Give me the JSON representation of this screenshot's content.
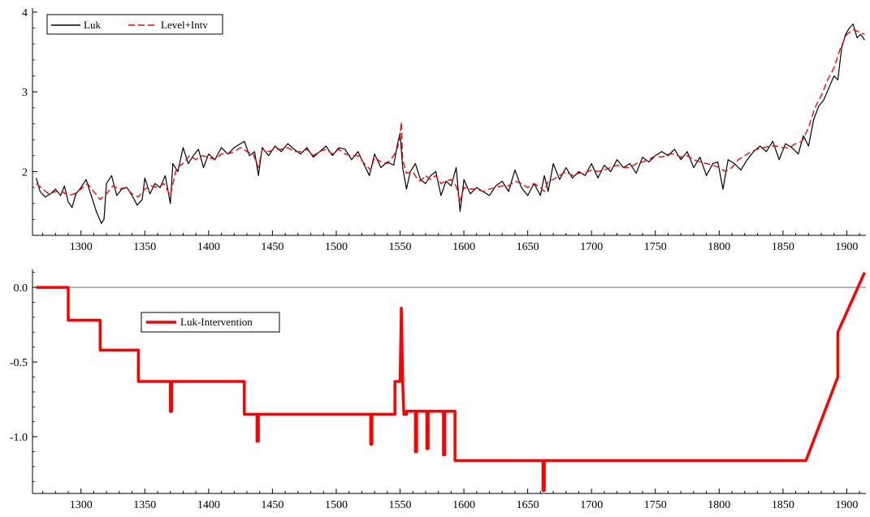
{
  "chart_data": [
    {
      "type": "line",
      "title": "",
      "xlabel": "",
      "ylabel": "",
      "xlim": [
        1262,
        1915
      ],
      "ylim": [
        1.2,
        4.05
      ],
      "xticks": [
        1300,
        1350,
        1400,
        1450,
        1500,
        1550,
        1600,
        1650,
        1700,
        1750,
        1800,
        1850,
        1900
      ],
      "yticks": [
        2,
        3,
        4
      ],
      "legend_position": "top-left",
      "grid": false,
      "series": [
        {
          "name": "Luk",
          "style": "solid",
          "color": "#000000",
          "x": [
            1265,
            1268,
            1272,
            1276,
            1280,
            1284,
            1287,
            1290,
            1293,
            1296,
            1300,
            1304,
            1308,
            1312,
            1316,
            1318,
            1320,
            1324,
            1328,
            1332,
            1336,
            1340,
            1344,
            1348,
            1350,
            1354,
            1358,
            1362,
            1366,
            1370,
            1372,
            1376,
            1380,
            1384,
            1388,
            1392,
            1396,
            1400,
            1405,
            1410,
            1415,
            1420,
            1425,
            1428,
            1432,
            1436,
            1439,
            1442,
            1447,
            1452,
            1457,
            1462,
            1467,
            1472,
            1477,
            1482,
            1487,
            1492,
            1497,
            1502,
            1507,
            1512,
            1517,
            1522,
            1526,
            1530,
            1535,
            1540,
            1545,
            1548,
            1550,
            1552,
            1555,
            1558,
            1562,
            1566,
            1570,
            1574,
            1578,
            1582,
            1586,
            1590,
            1594,
            1597,
            1600,
            1605,
            1610,
            1615,
            1620,
            1625,
            1630,
            1635,
            1640,
            1645,
            1650,
            1655,
            1660,
            1663,
            1666,
            1670,
            1675,
            1680,
            1685,
            1690,
            1695,
            1700,
            1705,
            1710,
            1715,
            1720,
            1725,
            1730,
            1735,
            1740,
            1745,
            1750,
            1755,
            1760,
            1765,
            1770,
            1775,
            1780,
            1785,
            1790,
            1795,
            1799,
            1803,
            1807,
            1812,
            1817,
            1822,
            1827,
            1832,
            1837,
            1842,
            1847,
            1852,
            1857,
            1862,
            1866,
            1870,
            1874,
            1878,
            1882,
            1886,
            1890,
            1893,
            1896,
            1899,
            1902,
            1905,
            1908,
            1911,
            1914
          ],
          "y": [
            1.92,
            1.75,
            1.68,
            1.72,
            1.78,
            1.7,
            1.82,
            1.62,
            1.55,
            1.72,
            1.8,
            1.9,
            1.7,
            1.5,
            1.35,
            1.4,
            1.85,
            1.95,
            1.7,
            1.78,
            1.8,
            1.7,
            1.58,
            1.65,
            1.92,
            1.72,
            1.85,
            1.8,
            1.95,
            1.6,
            2.1,
            2.0,
            2.3,
            2.1,
            2.2,
            2.28,
            2.05,
            2.22,
            2.15,
            2.3,
            2.22,
            2.3,
            2.35,
            2.38,
            2.2,
            2.25,
            1.95,
            2.3,
            2.2,
            2.32,
            2.25,
            2.35,
            2.28,
            2.22,
            2.3,
            2.18,
            2.25,
            2.32,
            2.2,
            2.3,
            2.28,
            2.15,
            2.25,
            2.08,
            1.95,
            2.22,
            2.05,
            2.12,
            2.08,
            2.35,
            2.48,
            2.05,
            1.78,
            2.0,
            2.1,
            1.9,
            1.85,
            1.95,
            2.0,
            1.7,
            1.88,
            1.82,
            2.05,
            1.5,
            1.9,
            1.72,
            1.8,
            1.75,
            1.7,
            1.82,
            1.88,
            1.75,
            2.02,
            1.8,
            1.7,
            1.85,
            1.7,
            1.95,
            1.75,
            2.1,
            1.9,
            2.05,
            1.92,
            2.0,
            1.95,
            2.1,
            1.92,
            2.08,
            2.0,
            2.15,
            2.05,
            2.1,
            1.98,
            2.18,
            2.12,
            2.2,
            2.25,
            2.2,
            2.28,
            2.15,
            2.25,
            2.05,
            2.18,
            1.95,
            2.1,
            2.12,
            1.78,
            2.15,
            2.1,
            2.02,
            2.15,
            2.25,
            2.32,
            2.25,
            2.38,
            2.15,
            2.35,
            2.3,
            2.22,
            2.45,
            2.32,
            2.65,
            2.82,
            2.9,
            3.05,
            3.2,
            3.15,
            3.55,
            3.72,
            3.8,
            3.85,
            3.68,
            3.72,
            3.65
          ],
          "values_estimated": true
        },
        {
          "name": "Level+Intv",
          "style": "dashed",
          "color": "#ff0000",
          "x": [
            1265,
            1270,
            1275,
            1280,
            1285,
            1290,
            1295,
            1300,
            1305,
            1310,
            1315,
            1320,
            1325,
            1330,
            1335,
            1340,
            1345,
            1350,
            1355,
            1360,
            1365,
            1370,
            1375,
            1380,
            1385,
            1390,
            1395,
            1400,
            1405,
            1410,
            1415,
            1420,
            1425,
            1430,
            1435,
            1439,
            1442,
            1447,
            1452,
            1457,
            1462,
            1467,
            1472,
            1477,
            1482,
            1487,
            1492,
            1497,
            1502,
            1507,
            1512,
            1517,
            1522,
            1527,
            1530,
            1535,
            1540,
            1545,
            1548,
            1550,
            1551,
            1552,
            1555,
            1560,
            1563,
            1566,
            1570,
            1574,
            1578,
            1582,
            1586,
            1590,
            1594,
            1597,
            1600,
            1605,
            1610,
            1615,
            1620,
            1625,
            1630,
            1635,
            1640,
            1645,
            1650,
            1655,
            1660,
            1663,
            1666,
            1670,
            1675,
            1680,
            1685,
            1690,
            1695,
            1700,
            1705,
            1710,
            1715,
            1720,
            1725,
            1730,
            1735,
            1740,
            1745,
            1750,
            1755,
            1760,
            1765,
            1770,
            1775,
            1780,
            1785,
            1790,
            1795,
            1800,
            1805,
            1810,
            1815,
            1820,
            1825,
            1830,
            1835,
            1840,
            1845,
            1850,
            1855,
            1860,
            1865,
            1870,
            1875,
            1880,
            1885,
            1890,
            1895,
            1900,
            1905,
            1910,
            1914
          ],
          "y": [
            1.85,
            1.78,
            1.72,
            1.75,
            1.75,
            1.7,
            1.72,
            1.78,
            1.85,
            1.75,
            1.65,
            1.72,
            1.82,
            1.78,
            1.8,
            1.72,
            1.68,
            1.78,
            1.82,
            1.8,
            1.85,
            1.7,
            2.05,
            2.1,
            2.2,
            2.15,
            2.2,
            2.18,
            2.15,
            2.22,
            2.22,
            2.25,
            2.3,
            2.25,
            2.22,
            2.05,
            2.28,
            2.25,
            2.28,
            2.28,
            2.3,
            2.25,
            2.25,
            2.28,
            2.2,
            2.25,
            2.28,
            2.22,
            2.28,
            2.22,
            2.2,
            2.2,
            2.1,
            2.02,
            2.18,
            2.12,
            2.1,
            2.2,
            2.3,
            2.45,
            2.62,
            2.15,
            1.98,
            2.0,
            1.92,
            1.88,
            1.95,
            1.9,
            1.95,
            1.85,
            1.88,
            1.9,
            1.82,
            1.62,
            1.8,
            1.78,
            1.78,
            1.75,
            1.78,
            1.8,
            1.82,
            1.82,
            1.88,
            1.85,
            1.8,
            1.85,
            1.8,
            1.75,
            1.88,
            1.9,
            1.95,
            2.0,
            1.95,
            1.98,
            1.98,
            2.02,
            2.0,
            2.02,
            2.05,
            2.08,
            2.05,
            2.05,
            2.1,
            2.12,
            2.15,
            2.2,
            2.18,
            2.22,
            2.22,
            2.18,
            2.2,
            2.15,
            2.12,
            2.1,
            2.08,
            2.05,
            2.0,
            2.05,
            2.15,
            2.2,
            2.25,
            2.28,
            2.3,
            2.32,
            2.32,
            2.3,
            2.3,
            2.35,
            2.38,
            2.55,
            2.8,
            2.95,
            3.15,
            3.3,
            3.55,
            3.72,
            3.78,
            3.75,
            3.72
          ],
          "values_estimated": true
        }
      ]
    },
    {
      "type": "line",
      "title": "",
      "xlabel": "",
      "ylabel": "",
      "xlim": [
        1262,
        1915
      ],
      "ylim": [
        -1.38,
        0.12
      ],
      "xticks": [
        1300,
        1350,
        1400,
        1450,
        1500,
        1550,
        1600,
        1650,
        1700,
        1750,
        1800,
        1850,
        1900
      ],
      "yticks": [
        -1.0,
        -0.5,
        0.0
      ],
      "ytick_labels": [
        "-1.0",
        "-0.5",
        "0.0"
      ],
      "reference_line_y": 0.0,
      "legend_position": "upper-left",
      "grid": false,
      "series": [
        {
          "name": "Luk-Intervention",
          "style": "solid",
          "color": "#ff0000",
          "x": [
            1265,
            1290,
            1290,
            1315,
            1315,
            1345,
            1345,
            1370,
            1370,
            1371,
            1371,
            1428,
            1428,
            1438,
            1438,
            1439,
            1439,
            1527,
            1527,
            1528,
            1528,
            1546,
            1546,
            1550,
            1551,
            1552,
            1552,
            1553,
            1553,
            1555,
            1555,
            1562,
            1562,
            1563,
            1563,
            1571,
            1571,
            1572,
            1572,
            1584,
            1584,
            1585,
            1585,
            1593,
            1593,
            1662,
            1662,
            1663,
            1663,
            1868,
            1893,
            1893,
            1914
          ],
          "y": [
            0.0,
            0.0,
            -0.22,
            -0.22,
            -0.42,
            -0.42,
            -0.63,
            -0.63,
            -0.83,
            -0.83,
            -0.63,
            -0.63,
            -0.85,
            -0.85,
            -1.03,
            -1.03,
            -0.85,
            -0.85,
            -1.05,
            -1.05,
            -0.85,
            -0.85,
            -0.63,
            -0.63,
            -0.14,
            -0.63,
            -0.63,
            -0.85,
            -0.85,
            -0.85,
            -0.83,
            -0.83,
            -1.1,
            -1.1,
            -0.83,
            -0.83,
            -1.08,
            -1.08,
            -0.83,
            -0.83,
            -1.12,
            -1.12,
            -0.83,
            -0.83,
            -1.16,
            -1.16,
            -1.36,
            -1.36,
            -1.16,
            -1.16,
            -0.6,
            -0.3,
            0.1
          ],
          "values_estimated": true
        }
      ]
    }
  ]
}
